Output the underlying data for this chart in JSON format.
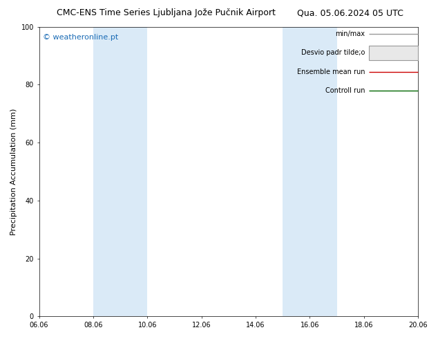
{
  "title_left": "CMC-ENS Time Series Ljubljana Jože Pučnik Airport",
  "title_right": "Qua. 05.06.2024 05 UTC",
  "ylabel": "Precipitation Accumulation (mm)",
  "watermark": "© weatheronline.pt",
  "ylim": [
    0,
    100
  ],
  "yticks": [
    0,
    20,
    40,
    60,
    80,
    100
  ],
  "xlim": [
    0,
    14
  ],
  "xtick_labels": [
    "06.06",
    "08.06",
    "10.06",
    "12.06",
    "14.06",
    "16.06",
    "18.06",
    "20.06"
  ],
  "xtick_positions_days": [
    0,
    2,
    4,
    6,
    8,
    10,
    12,
    14
  ],
  "shaded_bands": [
    {
      "xstart_days": 2.0,
      "xend_days": 4.0,
      "color": "#daeaf7"
    },
    {
      "xstart_days": 9.0,
      "xend_days": 11.0,
      "color": "#daeaf7"
    }
  ],
  "legend_entries": [
    {
      "label": "min/max",
      "color": "#999999",
      "lw": 1.0
    },
    {
      "label": "Desvio padr tilde;o",
      "color": "#cccccc",
      "lw": 5
    },
    {
      "label": "Ensemble mean run",
      "color": "#cc0000",
      "lw": 1.0
    },
    {
      "label": "Controll run",
      "color": "#006600",
      "lw": 1.0
    }
  ],
  "background_color": "#ffffff",
  "plot_bg_color": "#ffffff",
  "title_fontsize": 9,
  "tick_fontsize": 7,
  "ylabel_fontsize": 8,
  "legend_fontsize": 7,
  "watermark_color": "#1a6bb5",
  "watermark_fontsize": 8
}
